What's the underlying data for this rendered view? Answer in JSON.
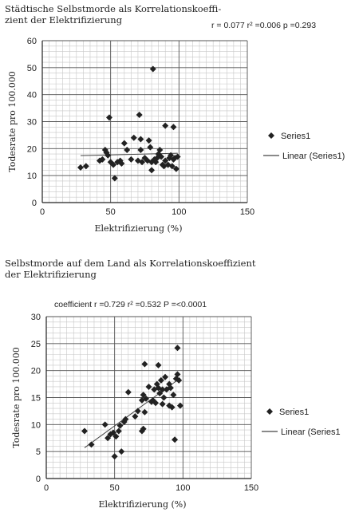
{
  "chart_data": [
    {
      "type": "scatter",
      "title": "Städtische Selbstmorde als Korrelationskoeffizient der Elektrifizierung",
      "title_lines": [
        "Städtische Selbstmorde als Korrelationskoeffi-",
        "zient der Elektrifizierung"
      ],
      "stats": "r = 0.077 r² =0.006  p =0.293",
      "xlabel": "Elektrifizierung (%)",
      "ylabel": "Todesrate pro 100.000",
      "xlim": [
        0,
        150
      ],
      "ylim": [
        0,
        60
      ],
      "xticks": [
        "0",
        "50",
        "100",
        "150"
      ],
      "yticks": [
        "0",
        "10",
        "20",
        "30",
        "40",
        "50",
        "60"
      ],
      "grid": true,
      "legend_position": "right",
      "series": [
        {
          "name": "Series1",
          "marker": "diamond",
          "points": [
            [
              28,
              13
            ],
            [
              32,
              13.5
            ],
            [
              42,
              15.5
            ],
            [
              44,
              16
            ],
            [
              46,
              19.5
            ],
            [
              47,
              18.5
            ],
            [
              48,
              17.5
            ],
            [
              49,
              31.5
            ],
            [
              50,
              15
            ],
            [
              52,
              14
            ],
            [
              53,
              9
            ],
            [
              55,
              15
            ],
            [
              57,
              15.5
            ],
            [
              58,
              14.5
            ],
            [
              60,
              22
            ],
            [
              62,
              19.5
            ],
            [
              65,
              16
            ],
            [
              67,
              24
            ],
            [
              70,
              15.5
            ],
            [
              71,
              32.5
            ],
            [
              72,
              23.5
            ],
            [
              72,
              19.5
            ],
            [
              73,
              15
            ],
            [
              75,
              16.5
            ],
            [
              77,
              15.5
            ],
            [
              78,
              23
            ],
            [
              79,
              20.5
            ],
            [
              80,
              15
            ],
            [
              80,
              12
            ],
            [
              81,
              49.5
            ],
            [
              82,
              16
            ],
            [
              83,
              15
            ],
            [
              84,
              16.5
            ],
            [
              85,
              18
            ],
            [
              86,
              19.5
            ],
            [
              87,
              17
            ],
            [
              88,
              14
            ],
            [
              89,
              13.5
            ],
            [
              90,
              15.5
            ],
            [
              90,
              28.5
            ],
            [
              92,
              14
            ],
            [
              93,
              16.5
            ],
            [
              94,
              17.5
            ],
            [
              95,
              13.5
            ],
            [
              96,
              28
            ],
            [
              96,
              16
            ],
            [
              97,
              16.5
            ],
            [
              98,
              12.5
            ],
            [
              99,
              17
            ]
          ]
        },
        {
          "name": "Linear (Series1)",
          "trendline": [
            [
              28,
              17.4
            ],
            [
              99,
              18.3
            ]
          ]
        }
      ]
    },
    {
      "type": "scatter",
      "title": "Selbstmorde auf dem Land als Korrelationskoeffizient der Elektrifizierung",
      "title_lines": [
        "Selbstmorde auf dem Land als Korrelationskoeffizient",
        "der Elektrifizierung"
      ],
      "stats": "coefficient r =0.729 r² =0.532 P =<0.0001",
      "xlabel": "Elektrifizierung (%)",
      "ylabel": "Todesrate pro 100.000",
      "xlim": [
        0,
        150
      ],
      "ylim": [
        0,
        30
      ],
      "xticks": [
        "0",
        "50",
        "100",
        "150"
      ],
      "yticks": [
        "0",
        "5",
        "10",
        "15",
        "20",
        "25",
        "30"
      ],
      "grid": true,
      "legend_position": "right",
      "series": [
        {
          "name": "Series1",
          "marker": "diamond",
          "points": [
            [
              28,
              8.8
            ],
            [
              33,
              6.3
            ],
            [
              43,
              10
            ],
            [
              45,
              7.5
            ],
            [
              47,
              8.2
            ],
            [
              49,
              8.5
            ],
            [
              50,
              4.1
            ],
            [
              51,
              7.8
            ],
            [
              53,
              8.8
            ],
            [
              54,
              9.8
            ],
            [
              55,
              5
            ],
            [
              57,
              10.5
            ],
            [
              58,
              11
            ],
            [
              60,
              16
            ],
            [
              65,
              11.5
            ],
            [
              67,
              12.5
            ],
            [
              70,
              8.8
            ],
            [
              70,
              14.5
            ],
            [
              71,
              15.5
            ],
            [
              71,
              9.2
            ],
            [
              72,
              12.3
            ],
            [
              72,
              21.2
            ],
            [
              73,
              14.8
            ],
            [
              75,
              17
            ],
            [
              77,
              14.2
            ],
            [
              78,
              14.5
            ],
            [
              79,
              16.5
            ],
            [
              80,
              14
            ],
            [
              81,
              17.5
            ],
            [
              82,
              21
            ],
            [
              82,
              16.8
            ],
            [
              83,
              15.8
            ],
            [
              84,
              18.2
            ],
            [
              85,
              16.5
            ],
            [
              85,
              13.8
            ],
            [
              86,
              15
            ],
            [
              87,
              18.8
            ],
            [
              88,
              16.5
            ],
            [
              90,
              13.5
            ],
            [
              90,
              17.5
            ],
            [
              91,
              16.8
            ],
            [
              92,
              13.2
            ],
            [
              93,
              15.5
            ],
            [
              94,
              7.2
            ],
            [
              95,
              18.5
            ],
            [
              96,
              24.2
            ],
            [
              96,
              19.3
            ],
            [
              97,
              18.2
            ],
            [
              98,
              13.5
            ]
          ]
        },
        {
          "name": "Linear (Series1",
          "trendline": [
            [
              28,
              5.7
            ],
            [
              98,
              18.6
            ]
          ]
        }
      ]
    }
  ]
}
